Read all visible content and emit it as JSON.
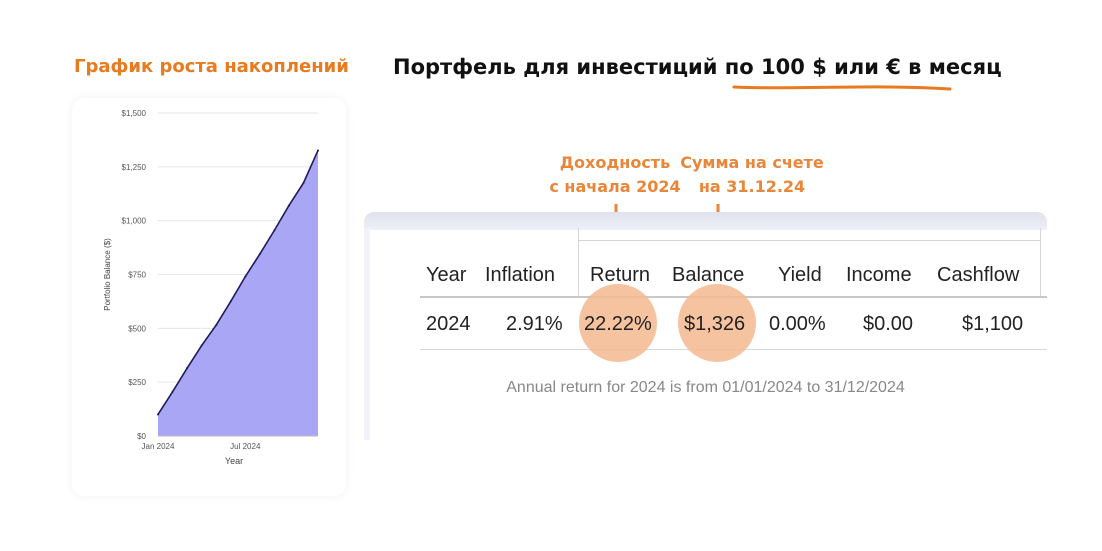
{
  "left_title": "График роста накоплений",
  "main_title": {
    "part1": "Портфель для инвестиций ",
    "part2": "по 100 $ или € в месяц"
  },
  "annotations": {
    "return_line1": "Доходность",
    "return_line2": "с начала 2024",
    "balance_line1": "Сумма на счете",
    "balance_line2": "на 31.12.24"
  },
  "table": {
    "headers": [
      "Year",
      "Inflation",
      "Return",
      "Balance",
      "Yield",
      "Income",
      "Cashflow"
    ],
    "row": [
      "2024",
      "2.91%",
      "22.22%",
      "$1,326",
      "0.00%",
      "$0.00",
      "$1,100"
    ]
  },
  "note": "Annual return for 2024 is from 01/01/2024 to 31/12/2024",
  "colors": {
    "accent": "#e87a1f",
    "area_fill": "#a9a6f5",
    "area_line": "#1e1b5a",
    "highlight": "#f5b88f"
  },
  "chart_data": {
    "type": "area",
    "ylabel": "Portfolio Balance ($)",
    "xlabel": "Year",
    "y_ticks": [
      "$0",
      "$250",
      "$500",
      "$750",
      "$1,000",
      "$1,250",
      "$1,500"
    ],
    "x_ticks": [
      {
        "label": "Jan 2024",
        "month": 1
      },
      {
        "label": "Jul 2024",
        "month": 7
      }
    ],
    "ylim": [
      0,
      1500
    ],
    "x": [
      "Jan 2024",
      "Feb 2024",
      "Mar 2024",
      "Apr 2024",
      "May 2024",
      "Jun 2024",
      "Jul 2024",
      "Aug 2024",
      "Sep 2024",
      "Oct 2024",
      "Nov 2024",
      "Dec 2024"
    ],
    "values": [
      100,
      205,
      315,
      420,
      515,
      625,
      740,
      845,
      955,
      1070,
      1175,
      1326
    ],
    "grid": true
  }
}
